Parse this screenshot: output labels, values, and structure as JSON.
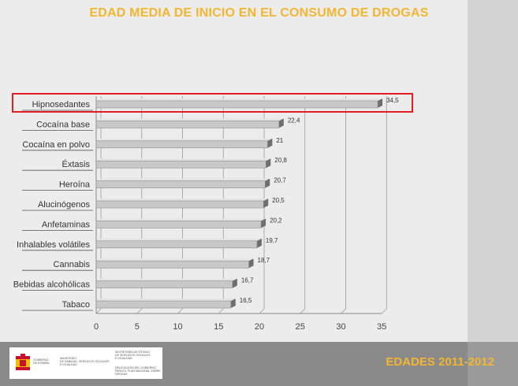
{
  "title": "EDAD MEDIA DE INICIO EN EL CONSUMO DE DROGAS",
  "footer": {
    "logo_left": "GOBIERNO\nDE ESPAÑA",
    "logo_mid": "MINISTERIO\nDE SANIDAD, SERVICIOS SOCIALES\nE IGUALDAD",
    "logo_right_top": "SECRETARÍA DE ESTADO\nDE SERVICIOS SOCIALES\nE IGUALDAD",
    "logo_right_bottom": "DELEGACIÓN DEL GOBIERNO\nPARA EL PLAN NACIONAL SOBRE DROGAS",
    "edades": "EDADES 2011-2012"
  },
  "colors": {
    "title": "#f2b632",
    "bar": "#c8c8c8",
    "highlight": "#e21e24"
  },
  "chart_data": {
    "type": "bar",
    "orientation": "horizontal",
    "title": "EDAD MEDIA DE INICIO EN EL CONSUMO DE DROGAS",
    "categories": [
      "Hipnosedantes",
      "Cocaína base",
      "Cocaína en polvo",
      "Éxtasis",
      "Heroína",
      "Alucinógenos",
      "Anfetaminas",
      "Inhalables volátiles",
      "Cannabis",
      "Bebidas alcohólicas",
      "Tabaco"
    ],
    "values": [
      34.5,
      22.4,
      21,
      20.8,
      20.7,
      20.5,
      20.2,
      19.7,
      18.7,
      16.7,
      16.5
    ],
    "value_labels": [
      "34,5",
      "22,4",
      "21",
      "20,8",
      "20,7",
      "20,5",
      "20,2",
      "19,7",
      "18,7",
      "16,7",
      "16,5"
    ],
    "xlim": [
      0,
      35
    ],
    "xticks": [
      "0",
      "5",
      "10",
      "15",
      "20",
      "25",
      "30",
      "35"
    ],
    "grid": true,
    "highlighted_category": "Hipnosedantes"
  }
}
